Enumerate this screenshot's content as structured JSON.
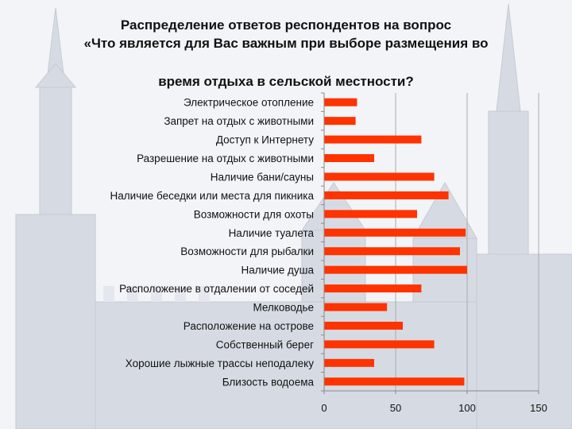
{
  "title_lines": [
    "Распределение ответов респондентов на вопрос",
    "«Что является для Вас важным при выборе размещения во",
    "время отдыха в сельской местности?"
  ],
  "colors": {
    "bar": "#ff3300",
    "axis": "#888888",
    "grid": "#aaaaaa"
  },
  "chart_data": {
    "type": "bar",
    "orientation": "horizontal",
    "title": "Распределение ответов респондентов на вопрос «Что является для Вас важным при выборе размещения во время отдыха в сельской местности?",
    "categories": [
      "Электрическое отопление",
      "Запрет на отдых с животными",
      "Доступ к Интернету",
      "Разрешение на отдых с животными",
      "Наличие бани/сауны",
      "Наличие беседки или места для пикника",
      "Возможности для охоты",
      "Наличие туалета",
      "Возможности для рыбалки",
      "Наличие душа",
      "Расположение в отдалении от соседей",
      "Мелководье",
      "Расположение на острове",
      "Собственный берег",
      "Хорошие лыжные трассы неподалеку",
      "Близость водоема"
    ],
    "values": [
      23,
      22,
      68,
      35,
      77,
      87,
      65,
      99,
      95,
      100,
      68,
      44,
      55,
      77,
      35,
      98
    ],
    "xlim": [
      0,
      150
    ],
    "xticks": [
      0,
      50,
      100,
      150
    ],
    "grid": "vertical",
    "legend": "none"
  }
}
